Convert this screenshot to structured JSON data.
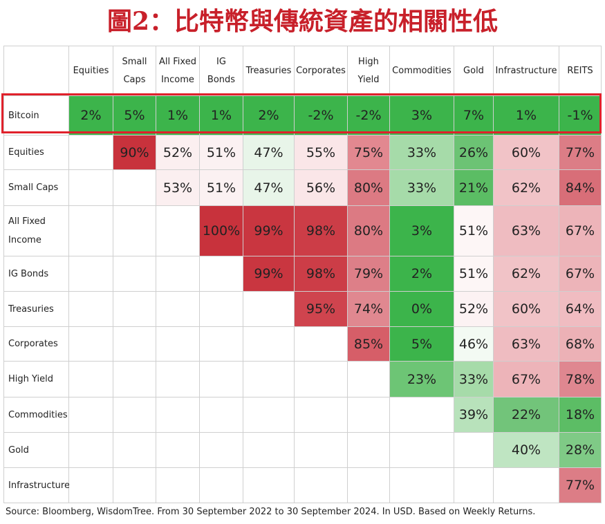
{
  "title": "圖2：比特幣與傳統資產的相關性低",
  "source": "Source: Bloomberg, WisdomTree. From 30 September 2022 to 30 September 2024. In USD. Based on Weekly Returns.",
  "colors": {
    "title": "#c8202a",
    "highlight_border": "#e0212b",
    "green_strong": "#3cb44b",
    "red_strong": "#c8323c"
  },
  "chart_data": {
    "type": "table",
    "title": "圖2：比特幣與傳統資產的相關性低",
    "columns": [
      "Equities",
      "Small Caps",
      "All Fixed Income",
      "IG Bonds",
      "Treasuries",
      "Corporates",
      "High Yield",
      "Commodities",
      "Gold",
      "Infrastructure",
      "REITS"
    ],
    "column_labels": [
      [
        "Equities"
      ],
      [
        "Small",
        "Caps"
      ],
      [
        "All Fixed",
        "Income"
      ],
      [
        "IG",
        "Bonds"
      ],
      [
        "Treasuries"
      ],
      [
        "Corporates"
      ],
      [
        "High",
        "Yield"
      ],
      [
        "Commodities"
      ],
      [
        "Gold"
      ],
      [
        "Infrastructure"
      ],
      [
        "REITS"
      ]
    ],
    "rows": [
      "Bitcoin",
      "Equities",
      "Small Caps",
      "All Fixed Income",
      "IG Bonds",
      "Treasuries",
      "Corporates",
      "High Yield",
      "Commodities",
      "Gold",
      "Infrastructure"
    ],
    "row_labels": [
      [
        "Bitcoin"
      ],
      [
        "Equities"
      ],
      [
        "Small Caps"
      ],
      [
        "All Fixed",
        "Income"
      ],
      [
        "IG Bonds"
      ],
      [
        "Treasuries"
      ],
      [
        "Corporates"
      ],
      [
        "High Yield"
      ],
      [
        "Commodities"
      ],
      [
        "Gold"
      ],
      [
        "Infrastructure"
      ]
    ],
    "values": [
      [
        "2%",
        "5%",
        "1%",
        "1%",
        "2%",
        "-2%",
        "-2%",
        "3%",
        "7%",
        "1%",
        "-1%"
      ],
      [
        "",
        "90%",
        "52%",
        "51%",
        "47%",
        "55%",
        "75%",
        "33%",
        "26%",
        "60%",
        "77%"
      ],
      [
        "",
        "",
        "53%",
        "51%",
        "47%",
        "56%",
        "80%",
        "33%",
        "21%",
        "62%",
        "84%"
      ],
      [
        "",
        "",
        "",
        "100%",
        "99%",
        "98%",
        "80%",
        "3%",
        "51%",
        "63%",
        "67%"
      ],
      [
        "",
        "",
        "",
        "",
        "99%",
        "98%",
        "79%",
        "2%",
        "51%",
        "62%",
        "67%"
      ],
      [
        "",
        "",
        "",
        "",
        "",
        "95%",
        "74%",
        "0%",
        "52%",
        "60%",
        "64%"
      ],
      [
        "",
        "",
        "",
        "",
        "",
        "",
        "85%",
        "5%",
        "46%",
        "63%",
        "68%"
      ],
      [
        "",
        "",
        "",
        "",
        "",
        "",
        "",
        "23%",
        "33%",
        "67%",
        "78%"
      ],
      [
        "",
        "",
        "",
        "",
        "",
        "",
        "",
        "",
        "39%",
        "22%",
        "18%"
      ],
      [
        "",
        "",
        "",
        "",
        "",
        "",
        "",
        "",
        "",
        "40%",
        "28%"
      ],
      [
        "",
        "",
        "",
        "",
        "",
        "",
        "",
        "",
        "",
        "",
        "77%"
      ]
    ],
    "cell_colors": [
      [
        "#3cb44b",
        "#3cb44b",
        "#3cb44b",
        "#3cb44b",
        "#3cb44b",
        "#3cb44b",
        "#3cb44b",
        "#3cb44b",
        "#3cb44b",
        "#3cb44b",
        "#3cb44b"
      ],
      [
        "",
        "#c8323c",
        "#fbeff0",
        "#fbf1f2",
        "#e8f5e9",
        "#fae6e8",
        "#e28890",
        "#a6dba9",
        "#6cc374",
        "#f1c3c7",
        "#dc7d86"
      ],
      [
        "",
        "",
        "#fbeff0",
        "#fbf1f2",
        "#e8f5e9",
        "#fae6e8",
        "#dc7a83",
        "#a6dba9",
        "#5bbd64",
        "#f1c3c7",
        "#d86e78"
      ],
      [
        "",
        "",
        "",
        "#c8323c",
        "#c93640",
        "#cc3d47",
        "#dc7a83",
        "#3cb44b",
        "#fdf6f6",
        "#efbcc1",
        "#edb4b9"
      ],
      [
        "",
        "",
        "",
        "",
        "#c93640",
        "#cc3d47",
        "#dd7f88",
        "#3cb44b",
        "#fdf6f6",
        "#f1c3c7",
        "#edb4b9"
      ],
      [
        "",
        "",
        "",
        "",
        "",
        "#cf444e",
        "#e08890",
        "#3cb44b",
        "#fcf2f3",
        "#f1c3c7",
        "#f0bcc1"
      ],
      [
        "",
        "",
        "",
        "",
        "",
        "",
        "#d65e68",
        "#3cb44b",
        "#f3faf3",
        "#efbcc1",
        "#ecb1b6"
      ],
      [
        "",
        "",
        "",
        "",
        "",
        "",
        "",
        "#6dc575",
        "#a6dba9",
        "#edb4b9",
        "#df8790"
      ],
      [
        "",
        "",
        "",
        "",
        "",
        "",
        "",
        "",
        "#b8e2bb",
        "#72c47a",
        "#5cbd65"
      ],
      [
        "",
        "",
        "",
        "",
        "",
        "",
        "",
        "",
        "",
        "#bfe5c2",
        "#7fca86"
      ],
      [
        "",
        "",
        "",
        "",
        "",
        "",
        "",
        "",
        "",
        "",
        "#dc7d86"
      ]
    ]
  }
}
